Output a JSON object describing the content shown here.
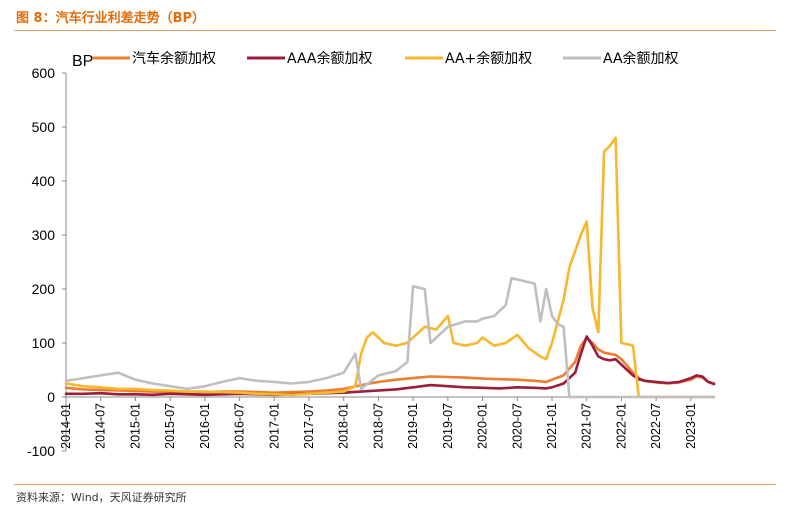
{
  "figure": {
    "title": "图 8：汽车行业利差走势（BP）",
    "source": "资料来源：Wind，天风证券研究所"
  },
  "chart_data": {
    "type": "line",
    "unit_label": "BP",
    "xlabel": "",
    "ylabel": "",
    "x_range": [
      "2014-01",
      "2023-05"
    ],
    "ylim": [
      -100,
      600
    ],
    "yticks": [
      -100,
      0,
      100,
      200,
      300,
      400,
      500,
      600
    ],
    "xticks": [
      "2014-01",
      "2014-07",
      "2015-01",
      "2015-07",
      "2016-01",
      "2016-07",
      "2017-01",
      "2017-07",
      "2018-01",
      "2018-07",
      "2019-01",
      "2019-07",
      "2020-01",
      "2020-07",
      "2021-01",
      "2021-07",
      "2022-01",
      "2022-07",
      "2023-01"
    ],
    "grid": false,
    "legend": "top",
    "series": [
      {
        "name": "汽车余额加权",
        "color": "#ed7d31",
        "points": [
          [
            "2014-01",
            17
          ],
          [
            "2014-04",
            14
          ],
          [
            "2014-07",
            13
          ],
          [
            "2014-10",
            12
          ],
          [
            "2015-01",
            11
          ],
          [
            "2015-04",
            10
          ],
          [
            "2015-07",
            9
          ],
          [
            "2015-10",
            8
          ],
          [
            "2016-01",
            9
          ],
          [
            "2016-04",
            10
          ],
          [
            "2016-07",
            10
          ],
          [
            "2016-10",
            9
          ],
          [
            "2017-01",
            8
          ],
          [
            "2017-04",
            9
          ],
          [
            "2017-07",
            10
          ],
          [
            "2017-10",
            12
          ],
          [
            "2018-01",
            15
          ],
          [
            "2018-04",
            22
          ],
          [
            "2018-07",
            28
          ],
          [
            "2018-10",
            32
          ],
          [
            "2019-01",
            35
          ],
          [
            "2019-04",
            38
          ],
          [
            "2019-07",
            37
          ],
          [
            "2019-10",
            36
          ],
          [
            "2020-01",
            34
          ],
          [
            "2020-04",
            33
          ],
          [
            "2020-07",
            32
          ],
          [
            "2020-10",
            30
          ],
          [
            "2020-12",
            28
          ],
          [
            "2021-01",
            32
          ],
          [
            "2021-03",
            40
          ],
          [
            "2021-05",
            65
          ],
          [
            "2021-06",
            95
          ],
          [
            "2021-07",
            110
          ],
          [
            "2021-08",
            100
          ],
          [
            "2021-09",
            88
          ],
          [
            "2021-10",
            82
          ],
          [
            "2021-11",
            80
          ],
          [
            "2021-12",
            78
          ],
          [
            "2022-01",
            70
          ],
          [
            "2022-02",
            58
          ],
          [
            "2022-03",
            45
          ],
          [
            "2022-04",
            35
          ],
          [
            "2022-05",
            30
          ],
          [
            "2022-07",
            27
          ],
          [
            "2022-09",
            25
          ],
          [
            "2022-11",
            27
          ],
          [
            "2023-01",
            32
          ],
          [
            "2023-02",
            38
          ],
          [
            "2023-03",
            36
          ],
          [
            "2023-04",
            28
          ],
          [
            "2023-05",
            25
          ]
        ]
      },
      {
        "name": "AAA余额加权",
        "color": "#9b1c3c",
        "points": [
          [
            "2014-01",
            6
          ],
          [
            "2014-04",
            6
          ],
          [
            "2014-07",
            7
          ],
          [
            "2014-10",
            5
          ],
          [
            "2015-01",
            5
          ],
          [
            "2015-04",
            4
          ],
          [
            "2015-07",
            6
          ],
          [
            "2015-10",
            5
          ],
          [
            "2016-01",
            4
          ],
          [
            "2016-04",
            5
          ],
          [
            "2016-07",
            6
          ],
          [
            "2016-10",
            5
          ],
          [
            "2017-01",
            4
          ],
          [
            "2017-04",
            5
          ],
          [
            "2017-07",
            6
          ],
          [
            "2017-10",
            7
          ],
          [
            "2018-01",
            8
          ],
          [
            "2018-04",
            10
          ],
          [
            "2018-07",
            12
          ],
          [
            "2018-10",
            14
          ],
          [
            "2019-01",
            18
          ],
          [
            "2019-04",
            22
          ],
          [
            "2019-07",
            20
          ],
          [
            "2019-10",
            18
          ],
          [
            "2020-01",
            17
          ],
          [
            "2020-04",
            16
          ],
          [
            "2020-07",
            18
          ],
          [
            "2020-10",
            17
          ],
          [
            "2020-12",
            16
          ],
          [
            "2021-01",
            18
          ],
          [
            "2021-03",
            25
          ],
          [
            "2021-05",
            45
          ],
          [
            "2021-06",
            80
          ],
          [
            "2021-07",
            112
          ],
          [
            "2021-08",
            95
          ],
          [
            "2021-09",
            75
          ],
          [
            "2021-10",
            70
          ],
          [
            "2021-11",
            68
          ],
          [
            "2021-12",
            70
          ],
          [
            "2022-01",
            60
          ],
          [
            "2022-02",
            50
          ],
          [
            "2022-03",
            40
          ],
          [
            "2022-04",
            33
          ],
          [
            "2022-05",
            30
          ],
          [
            "2022-07",
            28
          ],
          [
            "2022-09",
            26
          ],
          [
            "2022-11",
            28
          ],
          [
            "2023-01",
            35
          ],
          [
            "2023-02",
            40
          ],
          [
            "2023-03",
            38
          ],
          [
            "2023-04",
            28
          ],
          [
            "2023-05",
            24
          ]
        ]
      },
      {
        "name": "AA+余额加权",
        "color": "#f5b82e",
        "points": [
          [
            "2014-01",
            25
          ],
          [
            "2014-04",
            20
          ],
          [
            "2014-07",
            18
          ],
          [
            "2014-10",
            15
          ],
          [
            "2015-01",
            15
          ],
          [
            "2015-04",
            13
          ],
          [
            "2015-07",
            12
          ],
          [
            "2015-10",
            10
          ],
          [
            "2016-01",
            10
          ],
          [
            "2016-04",
            9
          ],
          [
            "2016-07",
            8
          ],
          [
            "2016-10",
            6
          ],
          [
            "2017-01",
            5
          ],
          [
            "2017-04",
            4
          ],
          [
            "2017-07",
            6
          ],
          [
            "2017-10",
            8
          ],
          [
            "2018-01",
            10
          ],
          [
            "2018-03",
            20
          ],
          [
            "2018-04",
            80
          ],
          [
            "2018-05",
            110
          ],
          [
            "2018-06",
            120
          ],
          [
            "2018-08",
            100
          ],
          [
            "2018-10",
            95
          ],
          [
            "2018-12",
            100
          ],
          [
            "2019-01",
            110
          ],
          [
            "2019-03",
            130
          ],
          [
            "2019-05",
            125
          ],
          [
            "2019-07",
            150
          ],
          [
            "2019-08",
            100
          ],
          [
            "2019-10",
            95
          ],
          [
            "2019-12",
            100
          ],
          [
            "2020-01",
            110
          ],
          [
            "2020-03",
            95
          ],
          [
            "2020-05",
            100
          ],
          [
            "2020-07",
            115
          ],
          [
            "2020-09",
            90
          ],
          [
            "2020-11",
            75
          ],
          [
            "2020-12",
            70
          ],
          [
            "2021-01",
            100
          ],
          [
            "2021-03",
            180
          ],
          [
            "2021-04",
            240
          ],
          [
            "2021-05",
            270
          ],
          [
            "2021-06",
            300
          ],
          [
            "2021-07",
            325
          ],
          [
            "2021-08",
            165
          ],
          [
            "2021-09",
            120
          ],
          [
            "2021-10",
            455
          ],
          [
            "2021-11",
            465
          ],
          [
            "2021-12",
            480
          ],
          [
            "2022-01",
            100
          ],
          [
            "2022-02",
            98
          ],
          [
            "2022-03",
            95
          ],
          [
            "2022-04",
            0
          ],
          [
            "2022-05",
            0
          ],
          [
            "2022-07",
            0
          ],
          [
            "2022-10",
            0
          ],
          [
            "2023-01",
            0
          ],
          [
            "2023-05",
            0
          ]
        ]
      },
      {
        "name": "AA余额加权",
        "color": "#bfbfbf",
        "points": [
          [
            "2014-01",
            30
          ],
          [
            "2014-04",
            35
          ],
          [
            "2014-07",
            40
          ],
          [
            "2014-10",
            45
          ],
          [
            "2015-01",
            32
          ],
          [
            "2015-04",
            25
          ],
          [
            "2015-07",
            20
          ],
          [
            "2015-10",
            15
          ],
          [
            "2016-01",
            20
          ],
          [
            "2016-04",
            28
          ],
          [
            "2016-07",
            35
          ],
          [
            "2016-10",
            30
          ],
          [
            "2017-01",
            28
          ],
          [
            "2017-04",
            25
          ],
          [
            "2017-07",
            28
          ],
          [
            "2017-10",
            35
          ],
          [
            "2018-01",
            45
          ],
          [
            "2018-03",
            80
          ],
          [
            "2018-04",
            15
          ],
          [
            "2018-07",
            40
          ],
          [
            "2018-10",
            48
          ],
          [
            "2018-12",
            65
          ],
          [
            "2019-01",
            205
          ],
          [
            "2019-03",
            200
          ],
          [
            "2019-04",
            100
          ],
          [
            "2019-07",
            130
          ],
          [
            "2019-10",
            140
          ],
          [
            "2019-12",
            140
          ],
          [
            "2020-01",
            145
          ],
          [
            "2020-03",
            150
          ],
          [
            "2020-05",
            170
          ],
          [
            "2020-06",
            220
          ],
          [
            "2020-08",
            215
          ],
          [
            "2020-10",
            210
          ],
          [
            "2020-11",
            140
          ],
          [
            "2020-12",
            200
          ],
          [
            "2021-01",
            150
          ],
          [
            "2021-02",
            135
          ],
          [
            "2021-03",
            130
          ],
          [
            "2021-04",
            0
          ],
          [
            "2021-07",
            0
          ],
          [
            "2022-01",
            0
          ],
          [
            "2022-07",
            0
          ],
          [
            "2023-01",
            0
          ],
          [
            "2023-05",
            0
          ]
        ]
      }
    ]
  }
}
